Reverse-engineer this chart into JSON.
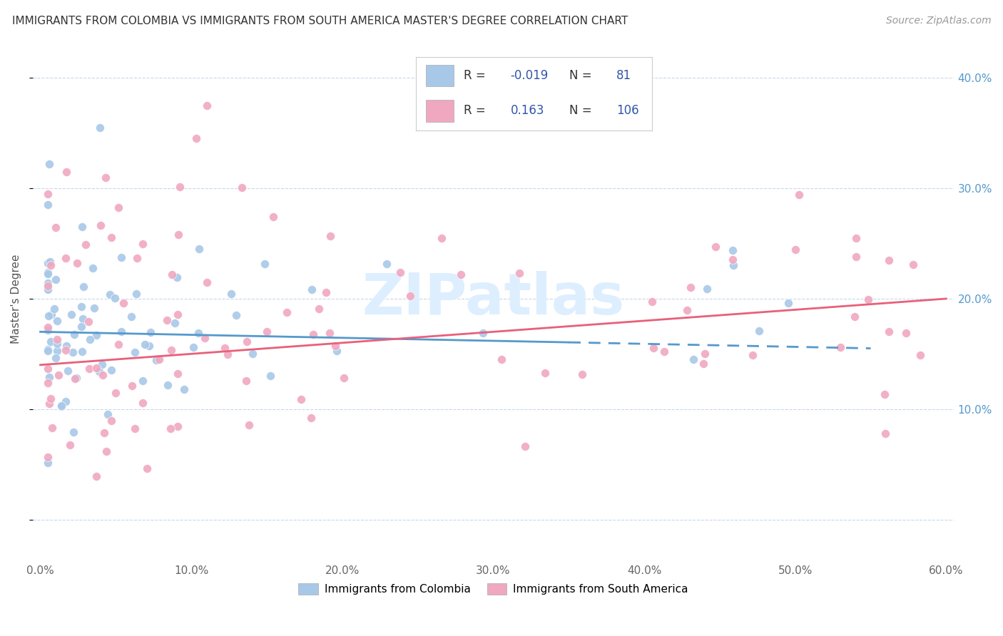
{
  "title": "IMMIGRANTS FROM COLOMBIA VS IMMIGRANTS FROM SOUTH AMERICA MASTER'S DEGREE CORRELATION CHART",
  "source": "Source: ZipAtlas.com",
  "xlabel_colombia": "Immigrants from Colombia",
  "xlabel_south_america": "Immigrants from South America",
  "ylabel": "Master's Degree",
  "xlim": [
    -0.005,
    0.605
  ],
  "ylim": [
    -0.035,
    0.435
  ],
  "yticks": [
    0.0,
    0.1,
    0.2,
    0.3,
    0.4
  ],
  "ytick_labels_right": [
    "",
    "10.0%",
    "20.0%",
    "30.0%",
    "40.0%"
  ],
  "xticks": [
    0.0,
    0.1,
    0.2,
    0.3,
    0.4,
    0.5,
    0.6
  ],
  "xtick_labels": [
    "0.0%",
    "10.0%",
    "20.0%",
    "30.0%",
    "40.0%",
    "50.0%",
    "60.0%"
  ],
  "R_colombia": -0.019,
  "N_colombia": 81,
  "R_south_america": 0.163,
  "N_south_america": 106,
  "color_colombia": "#a8c8e8",
  "color_south_america": "#f0a8c0",
  "trend_color_colombia": "#5599cc",
  "trend_color_south_america": "#e8607a",
  "legend_R_color": "#3355aa",
  "legend_text_color": "#333333",
  "tick_color": "#5599cc",
  "grid_color": "#c8d8e8",
  "title_color": "#333333",
  "source_color": "#999999",
  "ylabel_color": "#555555",
  "watermark_text": "ZIPatlas",
  "watermark_color": "#ddeeff",
  "blue_trend_solid_end": 0.35,
  "blue_trend_start_y": 0.17,
  "blue_trend_end_y": 0.155,
  "pink_trend_start_y": 0.14,
  "pink_trend_end_y": 0.2
}
